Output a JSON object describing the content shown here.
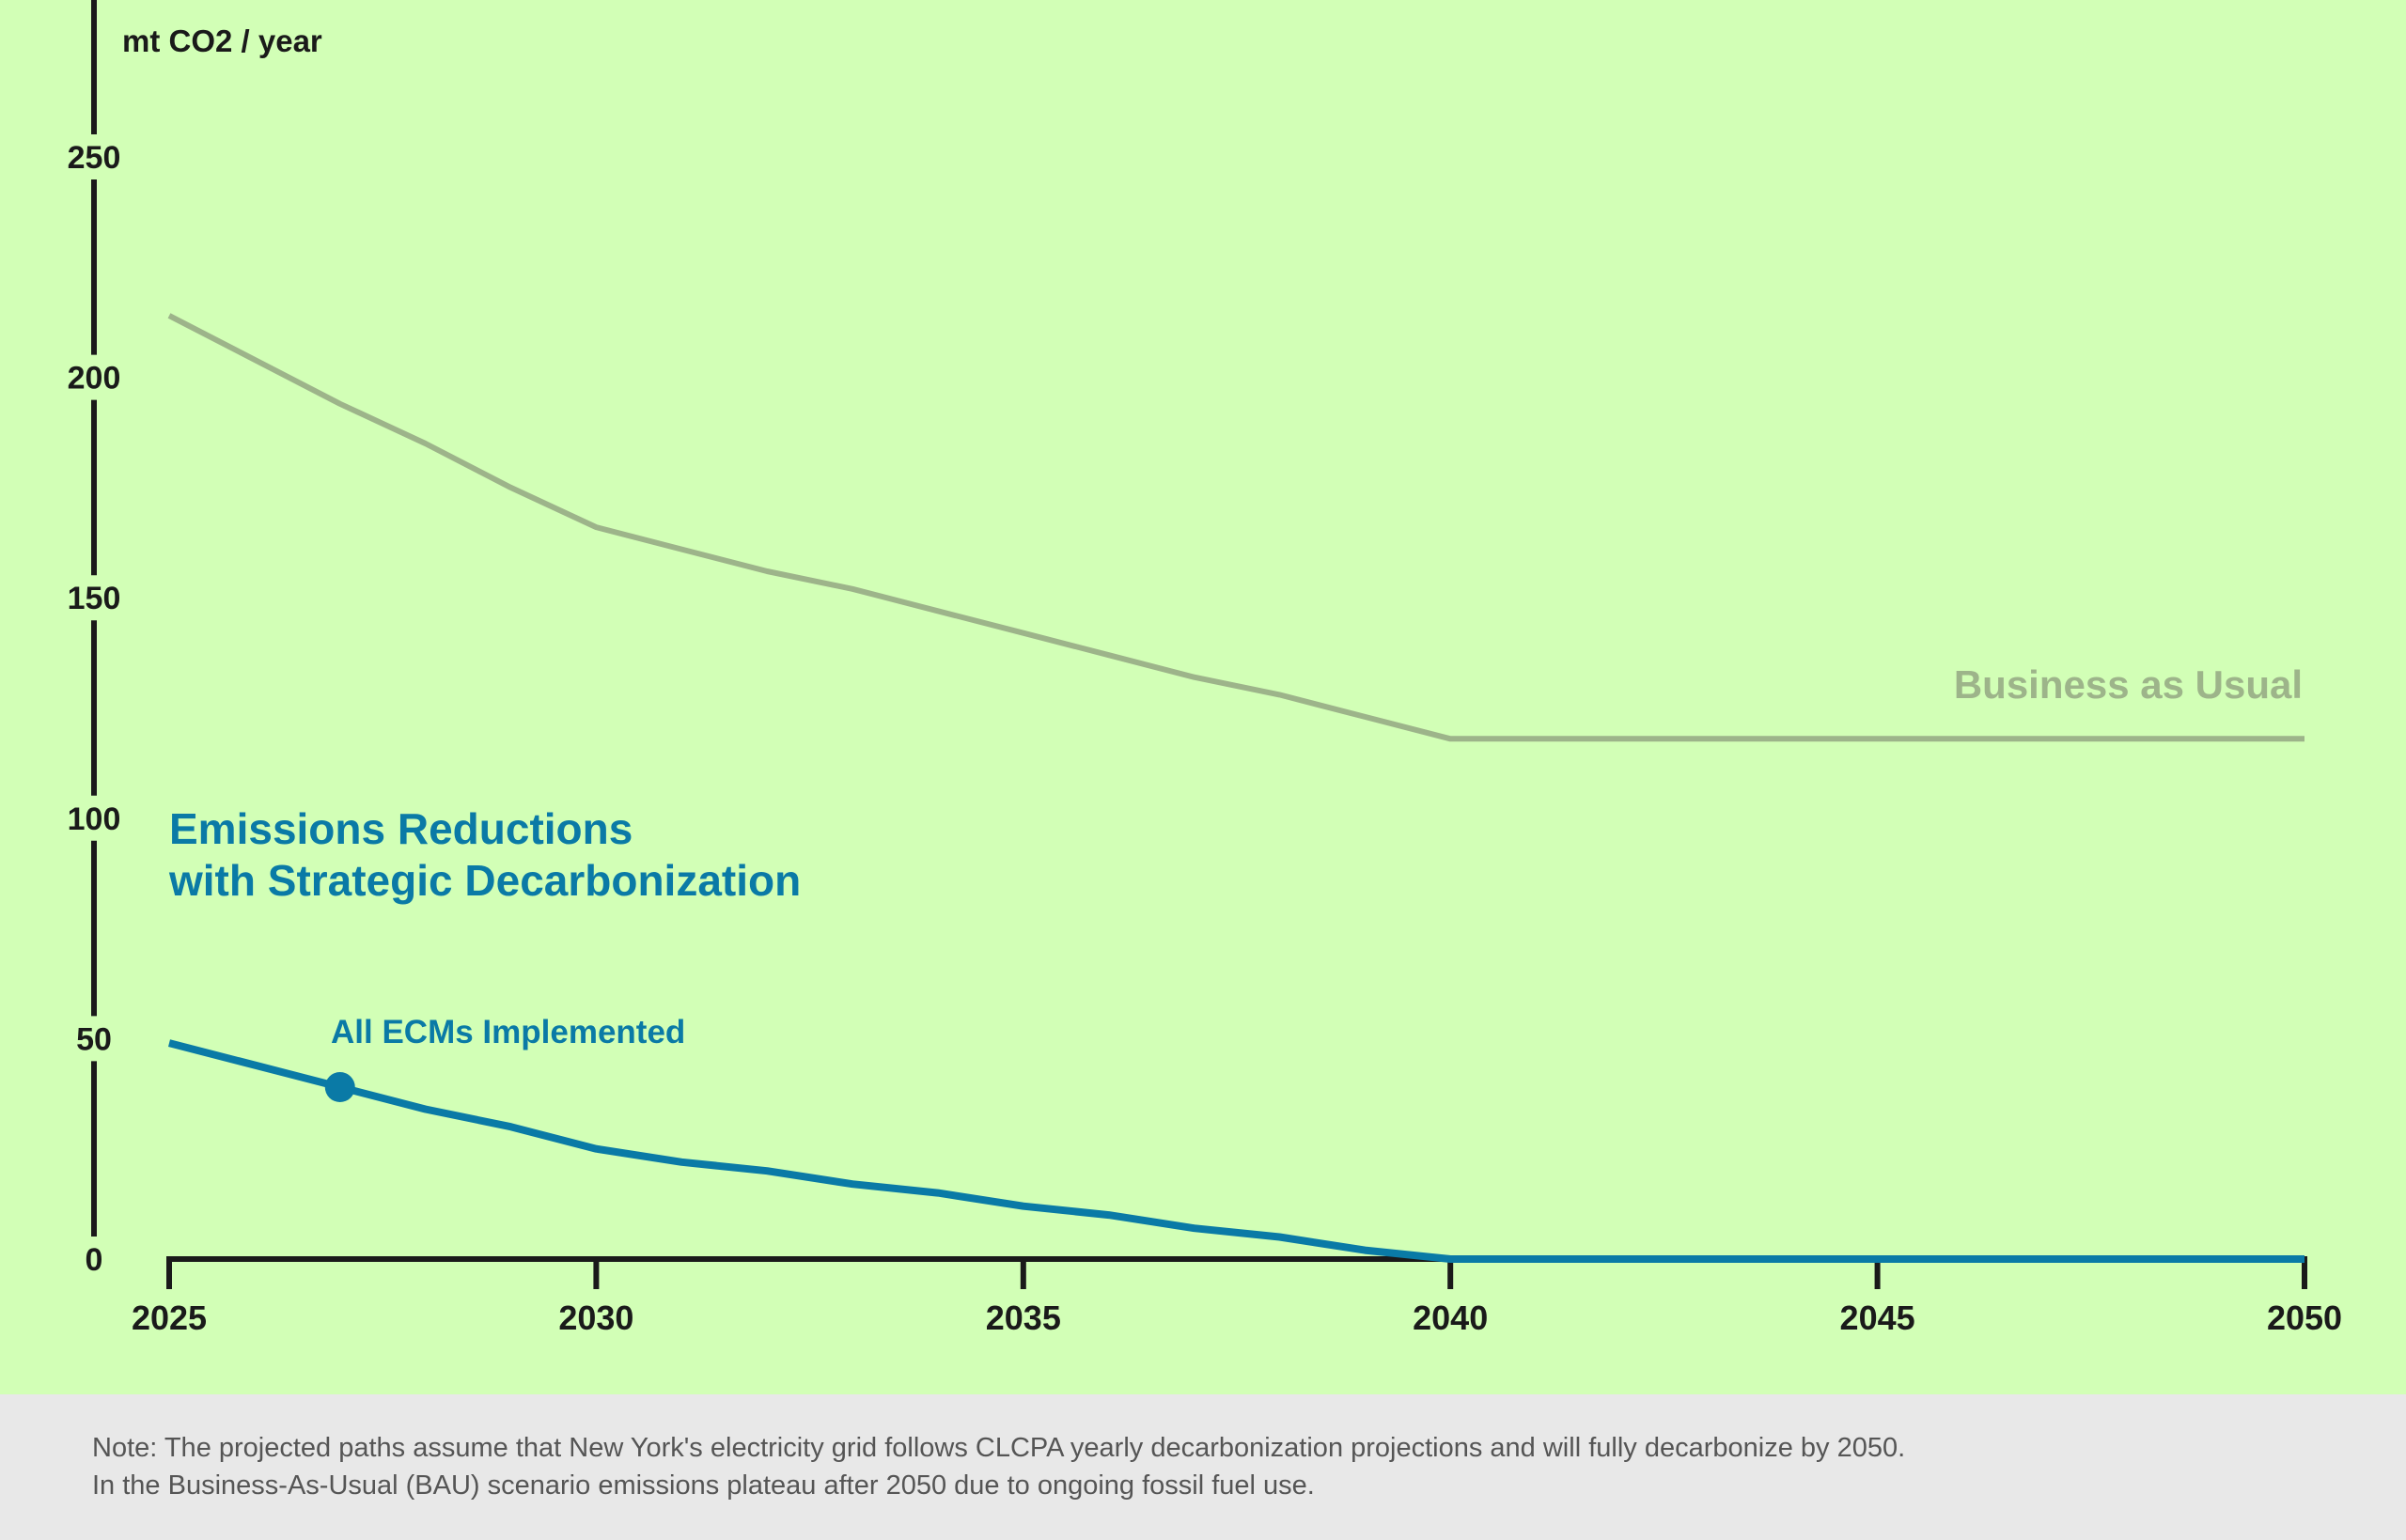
{
  "colors": {
    "chart_background": "#d2ffb6",
    "note_background": "#e8e8e8",
    "axis": "#1a1a1a",
    "bau_series": "#9db48a",
    "strategic_series": "#0a7aa6",
    "note_text": "#555555"
  },
  "chart_data": {
    "type": "line",
    "title": "",
    "ylabel": "mt CO2 / year",
    "xlabel": "",
    "xlim": [
      2025,
      2050
    ],
    "ylim": [
      0,
      275
    ],
    "xticks": [
      2025,
      2030,
      2035,
      2040,
      2045,
      2050
    ],
    "yticks": [
      0,
      50,
      100,
      150,
      200,
      250
    ],
    "grid": false,
    "series": [
      {
        "name": "Business as Usual",
        "x": [
          2025,
          2027,
          2028,
          2029,
          2030,
          2031,
          2032,
          2033,
          2034,
          2035,
          2036,
          2037,
          2038,
          2039,
          2040,
          2050
        ],
        "y": [
          214,
          194,
          185,
          175,
          166,
          161,
          156,
          152,
          147,
          142,
          137,
          132,
          128,
          123,
          118,
          118
        ]
      },
      {
        "name": "Emissions Reductions with Strategic Decarbonization",
        "x": [
          2025,
          2027,
          2028,
          2029,
          2030,
          2031,
          2032,
          2033,
          2034,
          2035,
          2036,
          2037,
          2038,
          2039,
          2040,
          2050
        ],
        "y": [
          49,
          39,
          34,
          30,
          25,
          22,
          20,
          17,
          15,
          12,
          10,
          7,
          5,
          2,
          0,
          0
        ]
      }
    ],
    "annotations": [
      {
        "text": "All ECMs Implemented",
        "x": 2027,
        "y": 39
      }
    ]
  },
  "labels": {
    "y_axis_title": "mt CO2 / year",
    "bau_label": "Business as Usual",
    "strategic_label_line1": "Emissions Reductions",
    "strategic_label_line2": "with Strategic Decarbonization",
    "milestone_label": "All ECMs Implemented"
  },
  "note": {
    "line1": "Note: The projected paths assume that New York's electricity grid follows CLCPA yearly decarbonization projections and will fully decarbonize by 2050.",
    "line2": "In the Business-As-Usual (BAU) scenario emissions plateau after 2050 due to ongoing fossil fuel use."
  }
}
